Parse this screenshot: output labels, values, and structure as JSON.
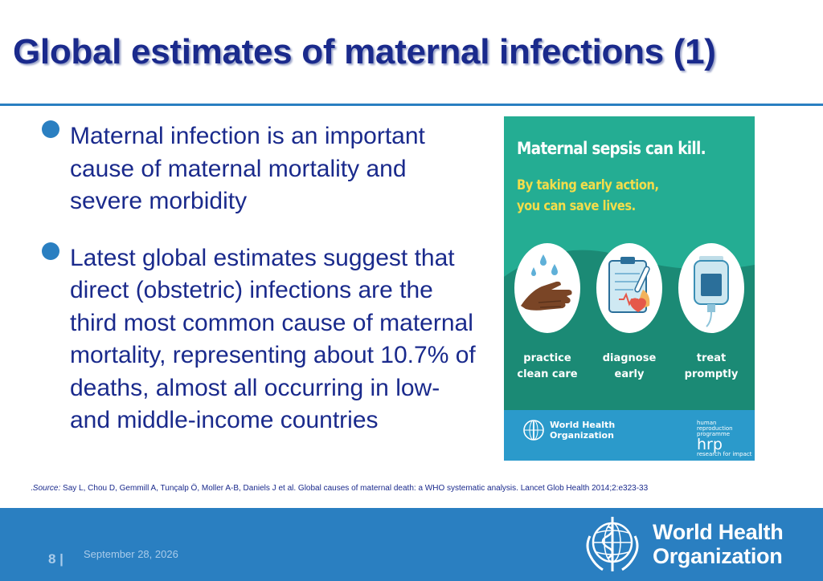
{
  "slide": {
    "title": "Global estimates of maternal infections (1)",
    "bullets": [
      "Maternal infection is an important cause of maternal mortality and severe morbidity",
      "Latest global estimates suggest that direct (obstetric) infections are the third most common cause of maternal mortality, representing about 10.7% of deaths, almost all occurring in low- and middle-income countries"
    ],
    "source_label": "Source:",
    "source_prefix": ".",
    "source_text": " Say L, Chou D, Gemmill A, Tunçalp Ö, Moller A-B, Daniels J et al. Global causes of maternal death: a WHO systematic analysis. Lancet Glob Health 2014;2:e323-33"
  },
  "poster": {
    "title": "Maternal sepsis can kill.",
    "subtitle": "By taking early action, you can save lives.",
    "actions": [
      {
        "line1": "practice",
        "line2": "clean care",
        "icon": "handwashing-icon"
      },
      {
        "line1": "diagnose",
        "line2": "early",
        "icon": "clipboard-thermometer-icon"
      },
      {
        "line1": "treat",
        "line2": "promptly",
        "icon": "iv-bag-icon"
      }
    ],
    "who_line1": "World Health",
    "who_line2": "Organization",
    "hrp_small": [
      "human",
      "reproduction",
      "programme"
    ],
    "hrp_big": "hrp",
    "hrp_tagline": "research for impact"
  },
  "footer": {
    "page_number": "8 |",
    "date": "September 28, 2026",
    "org_line1": "World Health",
    "org_line2": "Organization"
  },
  "colors": {
    "title": "#1a2a8c",
    "accent_blue": "#2a7fc1",
    "poster_teal": "#24ad93",
    "poster_dark_teal": "#1b8a75",
    "poster_yellow": "#f4dd4a"
  }
}
